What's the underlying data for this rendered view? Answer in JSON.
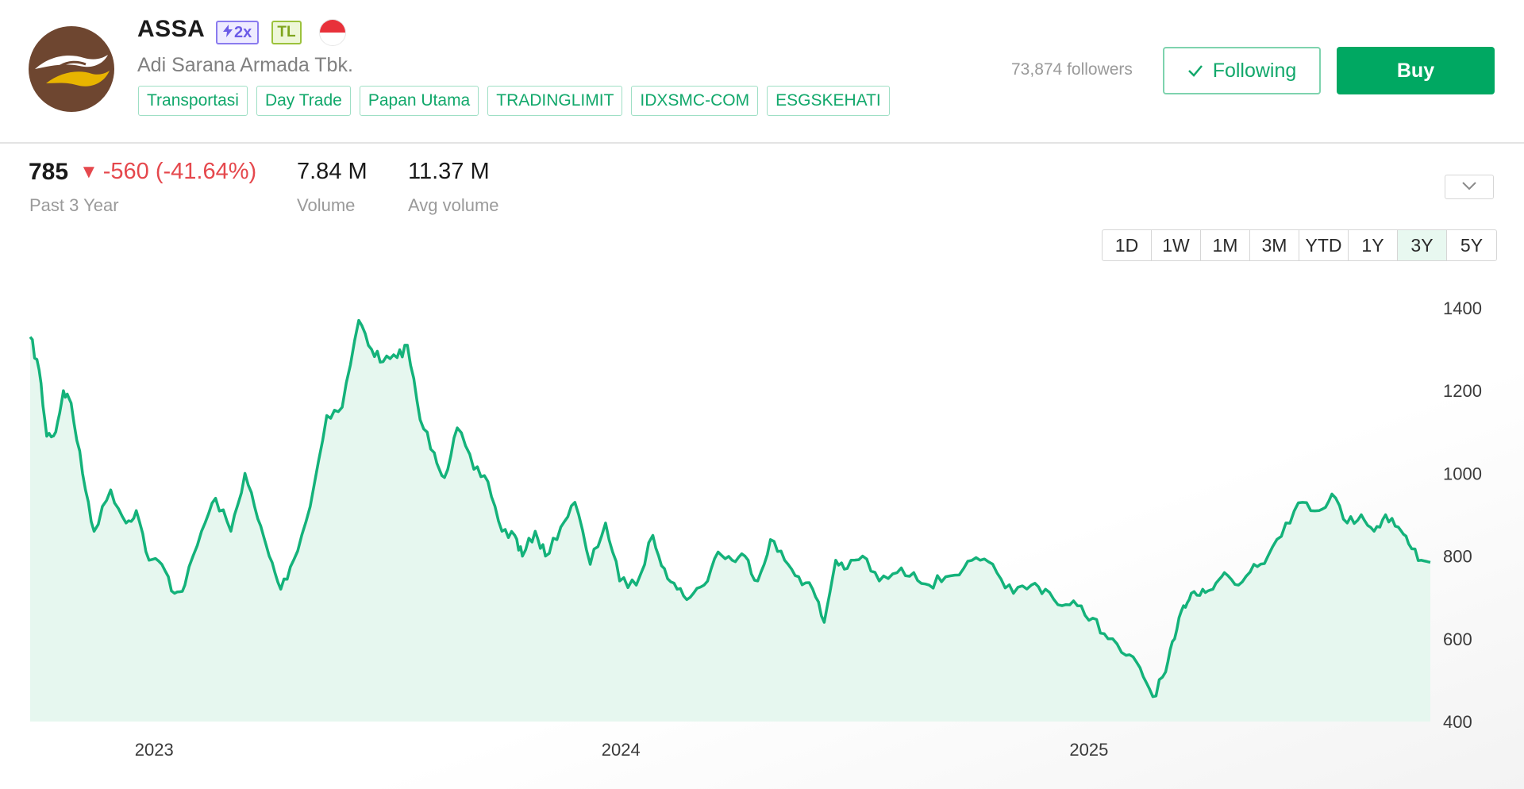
{
  "header": {
    "ticker": "ASSA",
    "badge_2x": "2x",
    "badge_tl": "TL",
    "company_name": "Adi Sarana Armada Tbk.",
    "tags": [
      "Transportasi",
      "Day Trade",
      "Papan Utama",
      "TRADINGLIMIT",
      "IDXSMC-COM",
      "ESGSKEHATI"
    ],
    "followers": "73,874 followers",
    "following_label": "Following",
    "buy_label": "Buy",
    "colors": {
      "accent": "#00a862",
      "down": "#e5484d",
      "badge_2x": "#6c5ce7",
      "badge_tl": "#7fa51d"
    },
    "icons": {
      "logo": "company-logo-icon",
      "flag": "indonesia-flag-icon",
      "bolt": "lightning-icon",
      "check": "check-icon",
      "chevron": "chevron-down-icon"
    }
  },
  "quote": {
    "price": "785",
    "change": "-560 (-41.64%)",
    "period_label": "Past 3 Year",
    "volume_value": "7.84 M",
    "volume_label": "Volume",
    "avg_volume_value": "11.37 M",
    "avg_volume_label": "Avg volume"
  },
  "ranges": {
    "options": [
      "1D",
      "1W",
      "1M",
      "3M",
      "YTD",
      "1Y",
      "3Y",
      "5Y"
    ],
    "selected": "3Y"
  },
  "chart_data": {
    "type": "area",
    "title": "",
    "xlabel": "",
    "ylabel": "",
    "ylim": [
      400,
      1400
    ],
    "yticks": [
      "1400",
      "1200",
      "1000",
      "800",
      "600",
      "400"
    ],
    "xticks": [
      {
        "label": "2023",
        "x": "2023-01-01"
      },
      {
        "label": "2024",
        "x": "2024-01-01"
      },
      {
        "label": "2025",
        "x": "2025-01-01"
      }
    ],
    "xlim": [
      "2022-09-26",
      "2025-09-25"
    ],
    "grid": false,
    "line_color": "#14b27a",
    "fill_color": "#e6f7ef",
    "series": [
      {
        "x": [
          "2022-09-26",
          "2022-10-03",
          "2022-10-09",
          "2022-10-16",
          "2022-10-22",
          "2022-10-28",
          "2022-11-06",
          "2022-11-15",
          "2022-11-28",
          "2022-12-10",
          "2022-12-18",
          "2022-12-28",
          "2023-01-07",
          "2023-01-17",
          "2023-01-25",
          "2023-02-07",
          "2023-02-18",
          "2023-03-02",
          "2023-03-13",
          "2023-03-23",
          "2023-04-01",
          "2023-04-10",
          "2023-04-20",
          "2023-05-03",
          "2023-05-16",
          "2023-05-28",
          "2023-06-10",
          "2023-06-20",
          "2023-06-29",
          "2023-07-10",
          "2023-07-18",
          "2023-07-28",
          "2023-08-08",
          "2023-08-16",
          "2023-08-26",
          "2023-09-08",
          "2023-09-19",
          "2023-09-30",
          "2023-10-10",
          "2023-10-16",
          "2023-10-26",
          "2023-11-03",
          "2023-11-15",
          "2023-11-26",
          "2023-12-08",
          "2023-12-20",
          "2023-12-31",
          "2024-01-13",
          "2024-01-26",
          "2024-02-04",
          "2024-02-14",
          "2024-02-24",
          "2024-03-06",
          "2024-03-17",
          "2024-03-28",
          "2024-04-07",
          "2024-04-17",
          "2024-04-27",
          "2024-05-08",
          "2024-05-19",
          "2024-05-30",
          "2024-06-08",
          "2024-06-17",
          "2024-06-26",
          "2024-07-08",
          "2024-07-21",
          "2024-08-04",
          "2024-08-17",
          "2024-08-29",
          "2024-09-11",
          "2024-09-25",
          "2024-10-08",
          "2024-10-21",
          "2024-11-03",
          "2024-11-17",
          "2024-11-28",
          "2024-12-11",
          "2024-12-23",
          "2025-01-04",
          "2025-01-16",
          "2025-01-30",
          "2025-02-10",
          "2025-02-20",
          "2025-03-02",
          "2025-03-09",
          "2025-03-16",
          "2025-03-22",
          "2025-03-31",
          "2025-04-08",
          "2025-04-17",
          "2025-04-28",
          "2025-05-10",
          "2025-05-21",
          "2025-06-04",
          "2025-06-17",
          "2025-06-30",
          "2025-07-10",
          "2025-07-22",
          "2025-08-02",
          "2025-08-12",
          "2025-08-21",
          "2025-08-31",
          "2025-09-08",
          "2025-09-18",
          "2025-09-25"
        ],
        "values": [
          1330,
          1250,
          1090,
          1100,
          1200,
          1170,
          1000,
          860,
          960,
          880,
          910,
          790,
          780,
          710,
          730,
          860,
          940,
          860,
          1000,
          890,
          800,
          720,
          790,
          920,
          1140,
          1160,
          1370,
          1300,
          1270,
          1280,
          1310,
          1130,
          1050,
          990,
          1110,
          1010,
          980,
          860,
          850,
          800,
          860,
          800,
          870,
          930,
          780,
          880,
          740,
          730,
          850,
          770,
          720,
          700,
          730,
          810,
          790,
          800,
          740,
          840,
          790,
          750,
          720,
          640,
          790,
          770,
          800,
          740,
          760,
          760,
          730,
          750,
          770,
          790,
          760,
          710,
          730,
          720,
          680,
          680,
          650,
          600,
          560,
          530,
          460,
          520,
          600,
          680,
          710,
          720,
          720,
          760,
          730,
          780,
          800,
          880,
          930,
          910,
          950,
          880,
          900,
          860,
          900,
          870,
          830,
          790,
          785
        ]
      }
    ]
  }
}
